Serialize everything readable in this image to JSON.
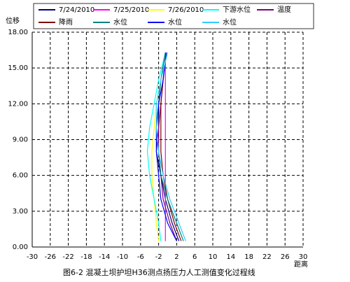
{
  "chart_data": {
    "type": "line",
    "title": "图6-2   混凝土坝护坦H36测点扬压力人工测值变化过程线",
    "x_label": "距离",
    "y_label": "位移",
    "xlim": [
      -30,
      30
    ],
    "xticks": [
      -30,
      -26,
      -22,
      -18,
      -14,
      -10,
      -6,
      -2,
      2,
      6,
      10,
      14,
      18,
      22,
      26,
      30
    ],
    "ylim": [
      0,
      18
    ],
    "yticks": [
      {
        "value": 0,
        "label": "0.00"
      },
      {
        "value": 3,
        "label": "3.00"
      },
      {
        "value": 6,
        "label": "6.00"
      },
      {
        "value": 9,
        "label": "9.00"
      },
      {
        "value": 12,
        "label": "12.00"
      },
      {
        "value": 15,
        "label": "15.00"
      },
      {
        "value": 18,
        "label": "18.00"
      }
    ],
    "grid": true,
    "series": [
      {
        "name": "7/24/2010",
        "color": "#000080",
        "x": [
          2.5,
          1,
          -0.5,
          -1.5,
          -2.5,
          -2,
          -2,
          -1.5,
          -0.5
        ],
        "values": [
          0.5,
          2,
          4,
          6,
          8,
          10,
          12,
          14,
          16.3
        ]
      },
      {
        "name": "7/25/2010",
        "color": "#ff00ff",
        "x": [
          -0.5,
          -0.5
        ],
        "values": [
          0.5,
          16.3
        ]
      },
      {
        "name": "7/26/2010",
        "color": "#ffff00",
        "x": [
          -2,
          -2.5,
          -3,
          -3.5,
          -3.5,
          -3,
          -2.5,
          -1.5,
          -0.5
        ],
        "values": [
          0.5,
          2,
          4,
          6,
          8,
          10,
          12,
          14,
          16.3
        ]
      },
      {
        "name": "下游水位",
        "color": "#00ffff",
        "x": [
          -1.5,
          -2,
          -3,
          -4,
          -4.5,
          -4,
          -3,
          -2,
          -0.5
        ],
        "values": [
          0.5,
          2,
          4,
          6,
          8,
          10,
          12,
          14,
          16.3
        ]
      },
      {
        "name": "温度",
        "color": "#800080",
        "x": [
          2,
          0.5,
          -1,
          -1.5,
          -2,
          -2,
          -1.5,
          -1,
          -0.3
        ],
        "values": [
          0.5,
          2,
          4,
          6,
          8,
          10,
          12,
          14,
          16.3
        ]
      },
      {
        "name": "降雨",
        "color": "#800000",
        "x": [
          3,
          1.5,
          0,
          -1,
          -1.5,
          -1.5,
          -1.5,
          -1,
          -0.3
        ],
        "values": [
          0.5,
          2,
          4,
          6,
          8,
          10,
          12,
          14,
          16.3
        ]
      },
      {
        "name": "水位",
        "color": "#008080",
        "x": [
          3.5,
          2,
          0,
          -1.5,
          -2,
          -2.5,
          -2,
          -1.5,
          -0.5
        ],
        "values": [
          0.5,
          2,
          4,
          6,
          8,
          10,
          12,
          14,
          16.3
        ]
      },
      {
        "name": "水位",
        "color": "#0000ff",
        "x": [
          2,
          0,
          -1.5,
          -2,
          -2.5,
          -2.5,
          -2,
          -1,
          -0.3
        ],
        "values": [
          0.5,
          2,
          4,
          6,
          8,
          10,
          12,
          14,
          16.3
        ]
      },
      {
        "name": "水位",
        "color": "#33ccff",
        "x": [
          4,
          2.5,
          0.5,
          -1,
          -2,
          -2.5,
          -2.5,
          -1.5,
          0
        ],
        "values": [
          0.5,
          2,
          4,
          6,
          8,
          10,
          12,
          14,
          16.3
        ]
      }
    ]
  }
}
